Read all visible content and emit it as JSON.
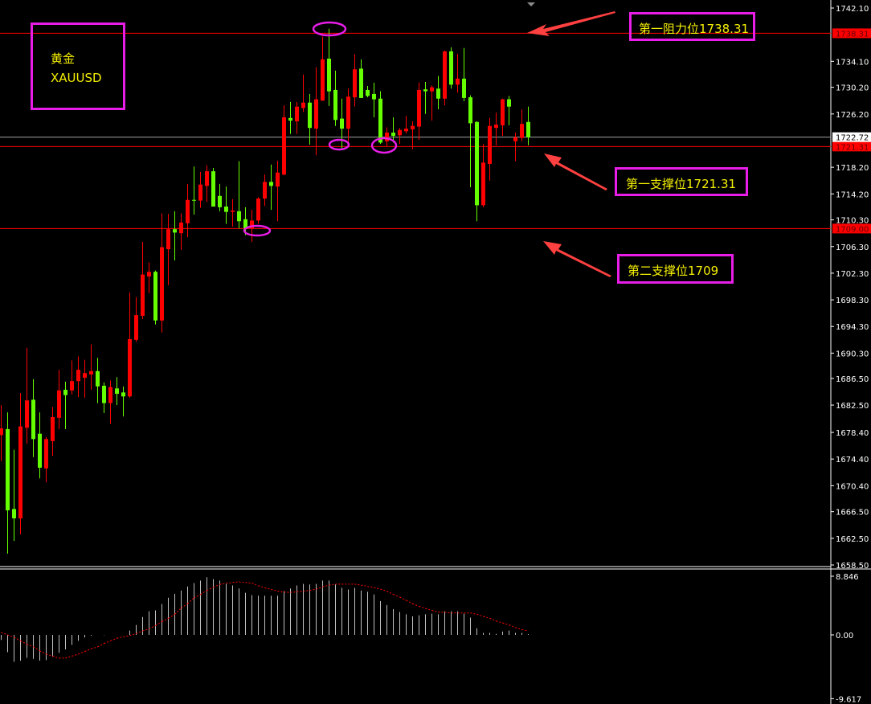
{
  "symbol": {
    "name_cn": "黄金",
    "ticker": "XAUUSD"
  },
  "annotations": [
    {
      "text": "第一阻力位1738.31",
      "level": 1738.31
    },
    {
      "text": "第一支撑位1721.31",
      "level": 1721.31
    },
    {
      "text": "第二支撑位1709",
      "level": 1709.0
    }
  ],
  "colors": {
    "background": "#000000",
    "bull": "#ff0000",
    "bear": "#66ff00",
    "level_line": "#ff0000",
    "annotation_border": "#e81ee8",
    "annotation_text": "#f5f000",
    "arrow": "#ff4040",
    "histogram": "#c0c0c0",
    "signal": "#ff0000"
  },
  "chart_data": [
    {
      "type": "candlestick",
      "ylim": [
        1658.5,
        1742.1
      ],
      "y_ticks": [
        "1742.10",
        "1734.10",
        "1730.20",
        "1726.20",
        "1718.20",
        "1714.20",
        "1710.30",
        "1706.30",
        "1702.30",
        "1698.30",
        "1694.30",
        "1690.30",
        "1686.50",
        "1682.50",
        "1678.40",
        "1674.40",
        "1670.40",
        "1666.50",
        "1662.50",
        "1658.50"
      ],
      "level_labels": [
        {
          "value": "1738.31",
          "kind": "resistance"
        },
        {
          "value": "1721.31",
          "kind": "support"
        },
        {
          "value": "1709.00",
          "kind": "support"
        }
      ],
      "current_price": "1722.72",
      "grid": false,
      "ohlc_fields": [
        "open",
        "high",
        "low",
        "close"
      ],
      "ohlc": [
        [
          1678.0,
          1682.5,
          1674.1,
          1679.0
        ],
        [
          1678.9,
          1681.4,
          1660.2,
          1666.7
        ],
        [
          1666.9,
          1675.8,
          1662.1,
          1665.5
        ],
        [
          1665.5,
          1684.3,
          1663.1,
          1679.3
        ],
        [
          1679.1,
          1691.1,
          1676.7,
          1683.2
        ],
        [
          1683.3,
          1686.4,
          1674.7,
          1677.4
        ],
        [
          1678.2,
          1681.4,
          1671.5,
          1673.1
        ],
        [
          1673.0,
          1677.7,
          1670.9,
          1677.4
        ],
        [
          1677.1,
          1682.2,
          1674.9,
          1680.7
        ],
        [
          1680.6,
          1687.8,
          1678.9,
          1684.7
        ],
        [
          1684.8,
          1686.0,
          1678.9,
          1684.0
        ],
        [
          1684.7,
          1689.2,
          1684.1,
          1686.1
        ],
        [
          1686.1,
          1689.8,
          1683.7,
          1687.8
        ],
        [
          1686.6,
          1689.3,
          1683.6,
          1687.3
        ],
        [
          1687.1,
          1691.6,
          1684.8,
          1687.6
        ],
        [
          1687.6,
          1689.6,
          1682.8,
          1685.3
        ],
        [
          1685.4,
          1685.9,
          1681.3,
          1682.8
        ],
        [
          1682.8,
          1686.2,
          1679.7,
          1685.2
        ],
        [
          1685.0,
          1686.7,
          1682.5,
          1684.2
        ],
        [
          1684.4,
          1685.3,
          1680.8,
          1683.8
        ],
        [
          1683.8,
          1699.4,
          1683.6,
          1692.4
        ],
        [
          1692.3,
          1698.7,
          1692.0,
          1696.0
        ],
        [
          1695.9,
          1707.0,
          1695.4,
          1702.1
        ],
        [
          1701.8,
          1703.9,
          1699.3,
          1702.5
        ],
        [
          1702.5,
          1702.7,
          1694.6,
          1695.2
        ],
        [
          1695.2,
          1711.3,
          1693.4,
          1706.2
        ],
        [
          1705.9,
          1711.2,
          1700.5,
          1708.9
        ],
        [
          1708.9,
          1711.6,
          1704.2,
          1708.4
        ],
        [
          1708.3,
          1711.3,
          1705.8,
          1709.9
        ],
        [
          1709.8,
          1715.7,
          1707.7,
          1713.3
        ],
        [
          1713.3,
          1718.3,
          1711.1,
          1713.2
        ],
        [
          1713.2,
          1717.5,
          1712.1,
          1715.6
        ],
        [
          1715.4,
          1718.5,
          1713.0,
          1717.6
        ],
        [
          1717.6,
          1718.1,
          1712.3,
          1712.3
        ],
        [
          1713.9,
          1715.7,
          1711.6,
          1712.2
        ],
        [
          1712.3,
          1715.3,
          1709.7,
          1711.5
        ],
        [
          1711.5,
          1713.4,
          1709.3,
          1711.7
        ],
        [
          1711.6,
          1719.1,
          1709.0,
          1710.1
        ],
        [
          1710.4,
          1712.2,
          1708.0,
          1709.0
        ],
        [
          1709.0,
          1711.8,
          1707.0,
          1710.2
        ],
        [
          1710.2,
          1713.7,
          1709.7,
          1713.5
        ],
        [
          1713.5,
          1717.1,
          1712.4,
          1716.0
        ],
        [
          1716.0,
          1718.6,
          1711.8,
          1715.4
        ],
        [
          1715.3,
          1719.2,
          1710.1,
          1717.4
        ],
        [
          1717.1,
          1727.5,
          1717.0,
          1725.7
        ],
        [
          1725.6,
          1728.0,
          1723.2,
          1725.2
        ],
        [
          1725.1,
          1728.0,
          1723.2,
          1727.3
        ],
        [
          1727.1,
          1732.1,
          1726.5,
          1727.9
        ],
        [
          1727.9,
          1729.2,
          1721.6,
          1724.1
        ],
        [
          1724.0,
          1733.2,
          1720.0,
          1728.4
        ],
        [
          1728.2,
          1737.8,
          1728.2,
          1734.4
        ],
        [
          1734.5,
          1739.0,
          1727.4,
          1729.6
        ],
        [
          1729.8,
          1732.7,
          1724.4,
          1725.3
        ],
        [
          1725.5,
          1728.5,
          1721.0,
          1724.0
        ],
        [
          1724.0,
          1730.0,
          1721.9,
          1728.8
        ],
        [
          1728.7,
          1735.2,
          1727.3,
          1732.9
        ],
        [
          1733.0,
          1734.4,
          1728.6,
          1728.6
        ],
        [
          1729.8,
          1730.4,
          1728.7,
          1728.9
        ],
        [
          1729.2,
          1730.9,
          1725.7,
          1728.4
        ],
        [
          1728.5,
          1729.6,
          1721.7,
          1721.9
        ],
        [
          1722.1,
          1724.2,
          1721.3,
          1723.4
        ],
        [
          1723.4,
          1725.7,
          1721.9,
          1722.9
        ],
        [
          1723.0,
          1724.1,
          1721.7,
          1723.8
        ],
        [
          1723.6,
          1725.9,
          1723.3,
          1724.0
        ],
        [
          1723.9,
          1725.1,
          1720.9,
          1724.4
        ],
        [
          1724.3,
          1730.9,
          1722.3,
          1729.8
        ],
        [
          1729.9,
          1731.0,
          1726.2,
          1729.6
        ],
        [
          1729.6,
          1730.5,
          1725.2,
          1730.2
        ],
        [
          1730.0,
          1731.9,
          1726.9,
          1728.5
        ],
        [
          1728.5,
          1735.7,
          1727.5,
          1735.6
        ],
        [
          1735.6,
          1736.2,
          1730.0,
          1730.6
        ],
        [
          1730.6,
          1735.2,
          1729.4,
          1731.5
        ],
        [
          1731.5,
          1736.1,
          1728.1,
          1728.6
        ],
        [
          1728.7,
          1729.0,
          1715.2,
          1724.8
        ],
        [
          1725.0,
          1725.1,
          1710.1,
          1712.5
        ],
        [
          1712.5,
          1721.7,
          1712.2,
          1718.9
        ],
        [
          1718.7,
          1725.6,
          1716.2,
          1724.4
        ],
        [
          1724.1,
          1726.4,
          1721.5,
          1724.6
        ],
        [
          1724.5,
          1728.5,
          1722.9,
          1728.4
        ],
        [
          1728.4,
          1728.9,
          1724.5,
          1727.3
        ],
        [
          1722.1,
          1723.4,
          1719.1,
          1722.7
        ],
        [
          1722.6,
          1726.9,
          1722.1,
          1724.7
        ],
        [
          1725.0,
          1727.3,
          1721.5,
          1722.72
        ]
      ]
    },
    {
      "type": "bar+line",
      "ylim": [
        -9.617,
        8.846
      ],
      "y_ticks": [
        "8.846",
        "0.00",
        "-9.617"
      ],
      "histogram": [
        -0.77,
        -2.6,
        -4.05,
        -3.9,
        -3.45,
        -3.6,
        -3.9,
        -3.8,
        -3.3,
        -2.7,
        -2.2,
        -1.5,
        -0.9,
        -0.4,
        -0.1,
        0,
        -0.05,
        0,
        0,
        0,
        0.65,
        1.5,
        2.7,
        3.56,
        3.7,
        4.65,
        5.6,
        6.2,
        6.7,
        7.3,
        7.8,
        8.2,
        8.7,
        8.4,
        8.2,
        7.7,
        7.45,
        7.0,
        6.35,
        6.0,
        5.9,
        5.9,
        5.9,
        5.9,
        6.6,
        7.0,
        7.45,
        7.7,
        7.6,
        7.7,
        8.2,
        8.2,
        7.6,
        7.1,
        6.85,
        7.1,
        6.7,
        6.5,
        6.1,
        5.1,
        4.5,
        3.9,
        3.45,
        3.1,
        2.8,
        2.95,
        3.1,
        3.2,
        3.1,
        3.56,
        3.56,
        3.56,
        3.2,
        2.6,
        1.0,
        0.3,
        0.3,
        0.15,
        0.5,
        0.65,
        0.3,
        0.3,
        0.1
      ],
      "signal": [
        0.36,
        0,
        -0.36,
        -0.9,
        -1.4,
        -1.8,
        -2.4,
        -2.9,
        -3.2,
        -3.5,
        -3.5,
        -3.2,
        -2.9,
        -2.5,
        -2.1,
        -1.8,
        -1.3,
        -0.9,
        -0.5,
        -0.3,
        -0.1,
        0.2,
        0.6,
        0.9,
        1.4,
        2.0,
        2.5,
        3.1,
        4.05,
        4.7,
        5.6,
        6.1,
        6.7,
        7.2,
        7.6,
        7.8,
        7.9,
        8.0,
        7.9,
        7.8,
        7.4,
        7.1,
        6.85,
        6.6,
        6.45,
        6.4,
        6.5,
        6.6,
        6.7,
        6.9,
        7.25,
        7.5,
        7.65,
        7.65,
        7.65,
        7.65,
        7.5,
        7.3,
        7.15,
        6.9,
        6.6,
        6.1,
        5.7,
        5.2,
        4.7,
        4.3,
        4.0,
        3.7,
        3.45,
        3.4,
        3.3,
        3.3,
        3.3,
        3.3,
        3.1,
        2.8,
        2.5,
        2.1,
        1.8,
        1.5,
        1.1,
        0.8,
        0.6
      ]
    }
  ]
}
